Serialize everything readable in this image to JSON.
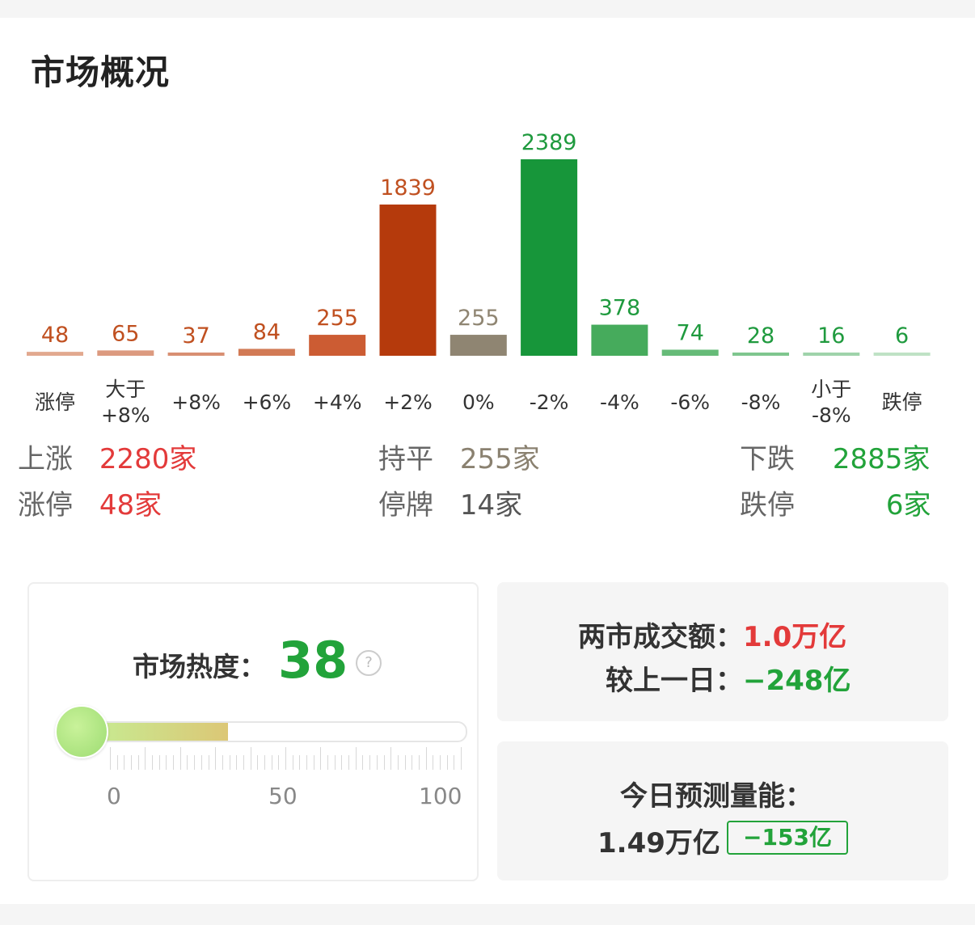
{
  "title": "市场概况",
  "chart_data": {
    "type": "bar",
    "categories": [
      "涨停",
      "大于\n+8%",
      "+8%",
      "+6%",
      "+4%",
      "+2%",
      "0%",
      "-2%",
      "-4%",
      "-6%",
      "-8%",
      "小于\n-8%",
      "跌停"
    ],
    "values": [
      48,
      65,
      37,
      84,
      255,
      1839,
      255,
      2389,
      378,
      74,
      28,
      16,
      6
    ],
    "colors": [
      "#e2a98f",
      "#dc9a7f",
      "#d88f72",
      "#d27a55",
      "#cc5c33",
      "#b53a0c",
      "#8f8572",
      "#17963a",
      "#46ab5c",
      "#66bb78",
      "#7fc68e",
      "#9fd3aa",
      "#bfe2c5"
    ],
    "label_colors": [
      "#c05020",
      "#c05020",
      "#c05020",
      "#c05020",
      "#c05020",
      "#c05020",
      "#8f8572",
      "#1f9a3e",
      "#1f9a3e",
      "#1f9a3e",
      "#1f9a3e",
      "#1f9a3e",
      "#1f9a3e"
    ],
    "title": "",
    "xlabel": "",
    "ylabel": ""
  },
  "stats": {
    "up_label": "上涨",
    "up_value": "2280家",
    "flat_label": "持平",
    "flat_value": "255家",
    "down_label": "下跌",
    "down_value": "2885家",
    "limit_up_label": "涨停",
    "limit_up_value": "48家",
    "halt_label": "停牌",
    "halt_value": "14家",
    "limit_down_label": "跌停",
    "limit_down_value": "6家"
  },
  "heat": {
    "label": "市场热度：",
    "value": "38",
    "level": 38,
    "help": "?",
    "scale_min": "0",
    "scale_mid": "50",
    "scale_max": "100"
  },
  "turnover": {
    "label": "两市成交额：",
    "value": "1.0万亿",
    "compare_label": "较上一日：",
    "compare_value": "−248亿"
  },
  "forecast": {
    "label": "今日预测量能：",
    "value": "1.49万亿",
    "delta": "−153亿"
  }
}
